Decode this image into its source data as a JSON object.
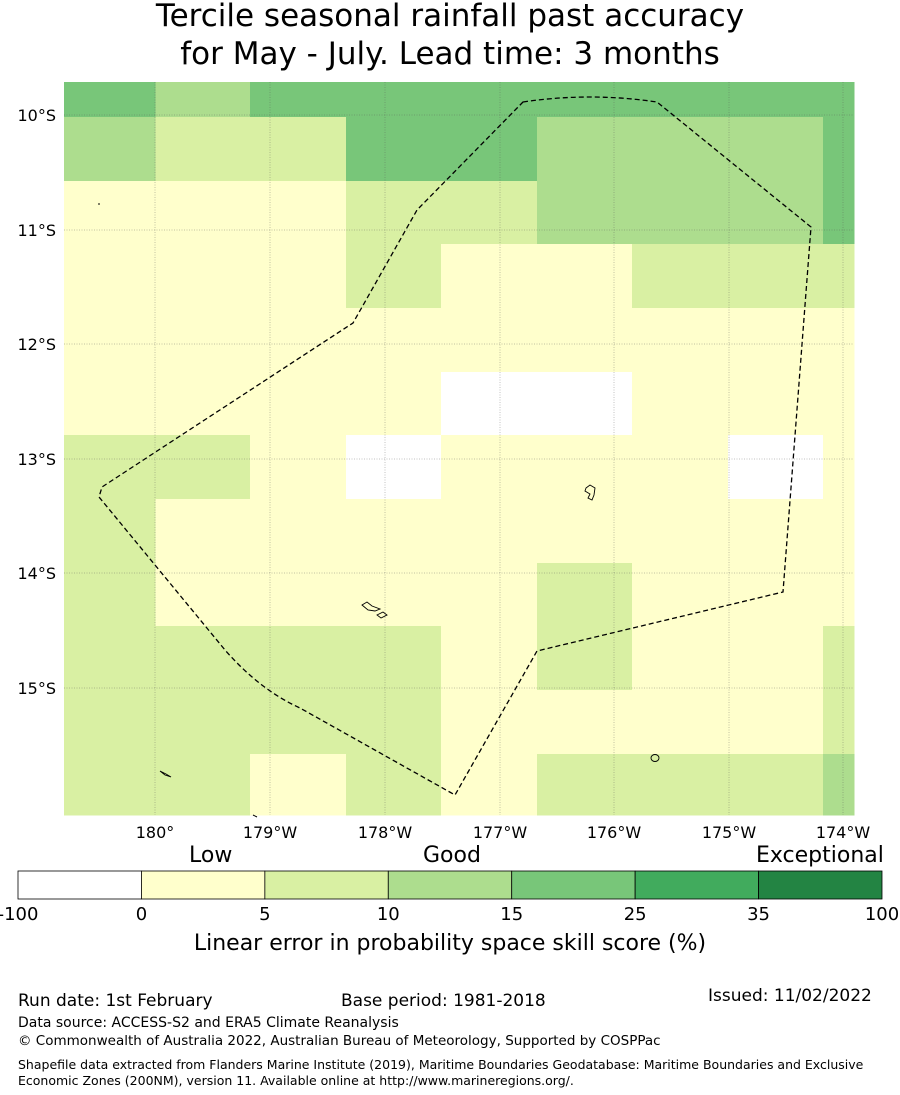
{
  "title": {
    "line1": "Tercile seasonal rainfall past accuracy",
    "line2": "for May - July. Lead time: 3 months"
  },
  "map": {
    "lat_labels": [
      "10°S",
      "11°S",
      "12°S",
      "13°S",
      "14°S",
      "15°S"
    ],
    "lon_labels": [
      "180°",
      "179°W",
      "178°W",
      "177°W",
      "176°W",
      "175°W",
      "174°W"
    ],
    "grid_columns": [
      "180.8°E",
      "180°",
      "179.2°W",
      "178.3°W",
      "177.5°W",
      "176.7°W",
      "175.8°W",
      "175°W",
      "174.2°W"
    ],
    "grid_rows": [
      "9.7°S",
      "10°S",
      "10.6°S",
      "11.1°S",
      "11.7°S",
      "12.2°S",
      "12.8°S",
      "13.4°S",
      "13.9°S",
      "14.5°S",
      "15°S",
      "15.6°S"
    ],
    "cells": [
      [
        3,
        2,
        3,
        3,
        3,
        3,
        3,
        3,
        3
      ],
      [
        2,
        1,
        1,
        3,
        3,
        2,
        2,
        2,
        3
      ],
      [
        0,
        0,
        0,
        1,
        1,
        2,
        2,
        2,
        3
      ],
      [
        0,
        0,
        0,
        1,
        0,
        0,
        1,
        1,
        1
      ],
      [
        0,
        0,
        0,
        0,
        0,
        0,
        0,
        0,
        0
      ],
      [
        0,
        0,
        0,
        0,
        -1,
        -1,
        0,
        0,
        0
      ],
      [
        1,
        1,
        0,
        -1,
        0,
        0,
        0,
        -1,
        0
      ],
      [
        1,
        0,
        0,
        0,
        0,
        0,
        0,
        0,
        0
      ],
      [
        1,
        0,
        0,
        0,
        0,
        1,
        0,
        0,
        0
      ],
      [
        1,
        1,
        1,
        1,
        0,
        1,
        0,
        0,
        1
      ],
      [
        1,
        1,
        1,
        1,
        0,
        0,
        0,
        0,
        1
      ],
      [
        1,
        1,
        0,
        1,
        0,
        1,
        1,
        1,
        2
      ]
    ]
  },
  "colorbar": {
    "category_low": "Low",
    "category_good": "Good",
    "category_exceptional": "Exceptional",
    "bins": [
      {
        "from": "-100",
        "to": "0",
        "color": "#ffffff"
      },
      {
        "from": "0",
        "to": "5",
        "color": "#ffffcc"
      },
      {
        "from": "5",
        "to": "10",
        "color": "#d9f0a3"
      },
      {
        "from": "10",
        "to": "15",
        "color": "#addd8e"
      },
      {
        "from": "15",
        "to": "25",
        "color": "#78c679"
      },
      {
        "from": "25",
        "to": "35",
        "color": "#41ab5d"
      },
      {
        "from": "35",
        "to": "100",
        "color": "#238443"
      }
    ],
    "tick_labels": [
      "-100",
      "0",
      "5",
      "10",
      "15",
      "25",
      "35",
      "100"
    ],
    "xlabel": "Linear error in probability space skill score (%)"
  },
  "footer": {
    "run_date": "Run date: 1st February",
    "base_period": "Base period: 1981-2018",
    "issued": "Issued: 11/02/2022",
    "data_source": "Data source: ACCESS-S2 and ERA5 Climate Reanalysis",
    "copyright": "© Commonwealth of Australia 2022, Australian Bureau of Meteorology, Supported by COSPPac",
    "shapefile": "Shapefile data extracted from Flanders Marine Institute (2019), Maritime Boundaries Geodatabase: Maritime Boundaries and Exclusive Economic Zones (200NM), version 11. Available online at http://www.marineregions.org/."
  }
}
